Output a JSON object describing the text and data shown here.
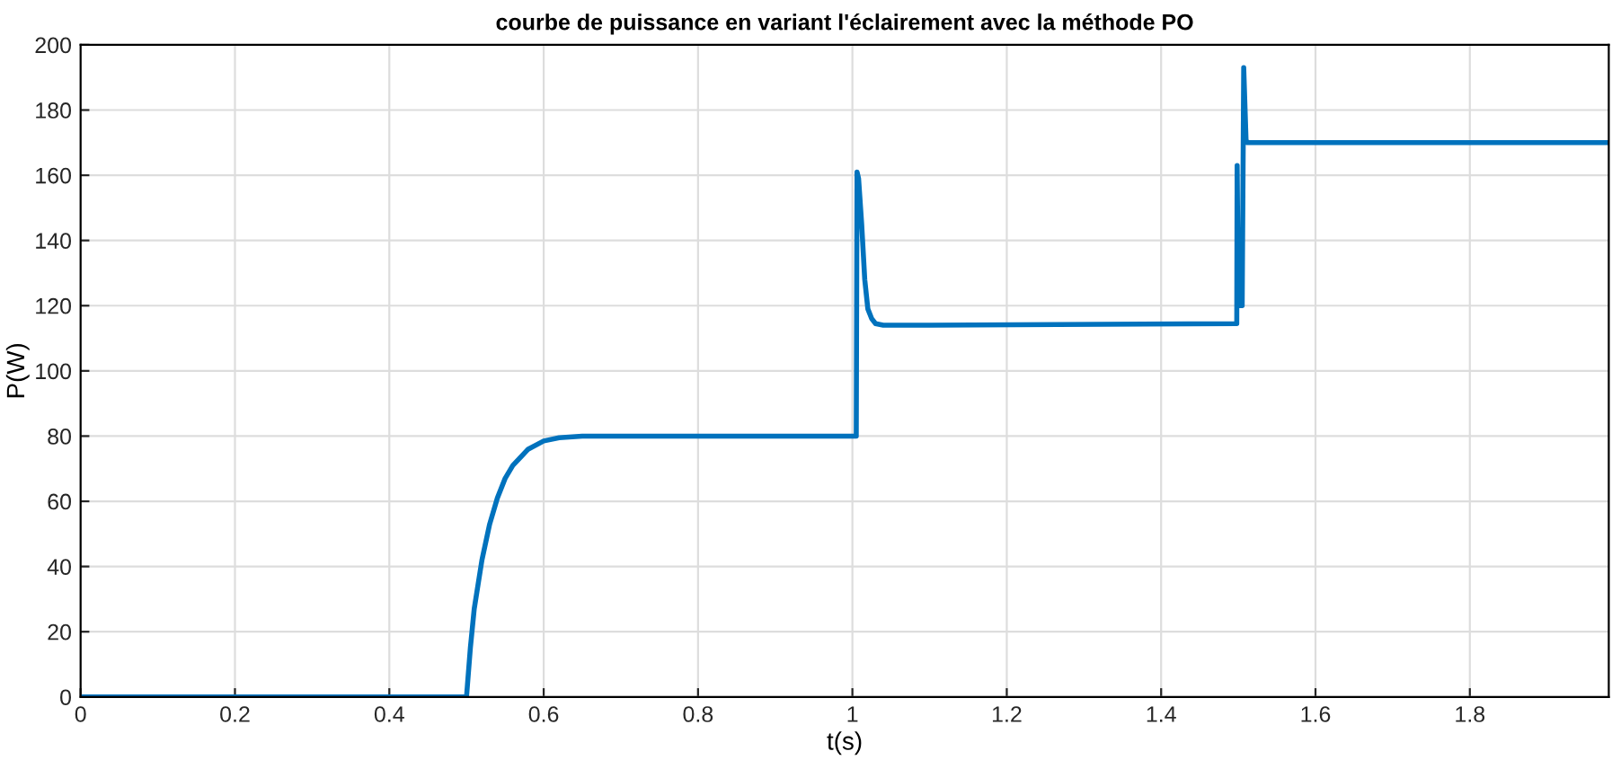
{
  "chart_data": {
    "type": "line",
    "title": "courbe de puissance en variant l'éclairement avec la méthode PO",
    "xlabel": "t(s)",
    "ylabel": "P(W)",
    "xlim": [
      0,
      1.98
    ],
    "ylim": [
      0,
      200
    ],
    "xticks": [
      0,
      0.2,
      0.4,
      0.6,
      0.8,
      1,
      1.2,
      1.4,
      1.6,
      1.8
    ],
    "yticks": [
      0,
      20,
      40,
      60,
      80,
      100,
      120,
      140,
      160,
      180,
      200
    ],
    "grid": true,
    "marker": "none",
    "line_style": "solid",
    "series": [
      {
        "color": "#0072bd",
        "x": [
          0,
          0.5,
          0.505,
          0.51,
          0.52,
          0.53,
          0.54,
          0.55,
          0.56,
          0.58,
          0.6,
          0.62,
          0.65,
          0.7,
          1.0,
          1.005,
          1.006,
          1.008,
          1.012,
          1.016,
          1.02,
          1.025,
          1.03,
          1.04,
          1.1,
          1.498,
          1.4985,
          1.5,
          1.505,
          1.507,
          1.51,
          1.511,
          1.6,
          1.98
        ],
        "values": [
          0,
          0,
          15,
          27,
          42,
          53,
          61,
          67,
          71,
          76,
          78.5,
          79.5,
          80,
          80,
          80,
          80,
          161,
          159,
          145,
          128,
          119,
          116,
          114.5,
          114,
          114,
          114.5,
          163,
          120,
          120,
          193,
          171,
          170,
          170,
          170
        ]
      }
    ]
  }
}
